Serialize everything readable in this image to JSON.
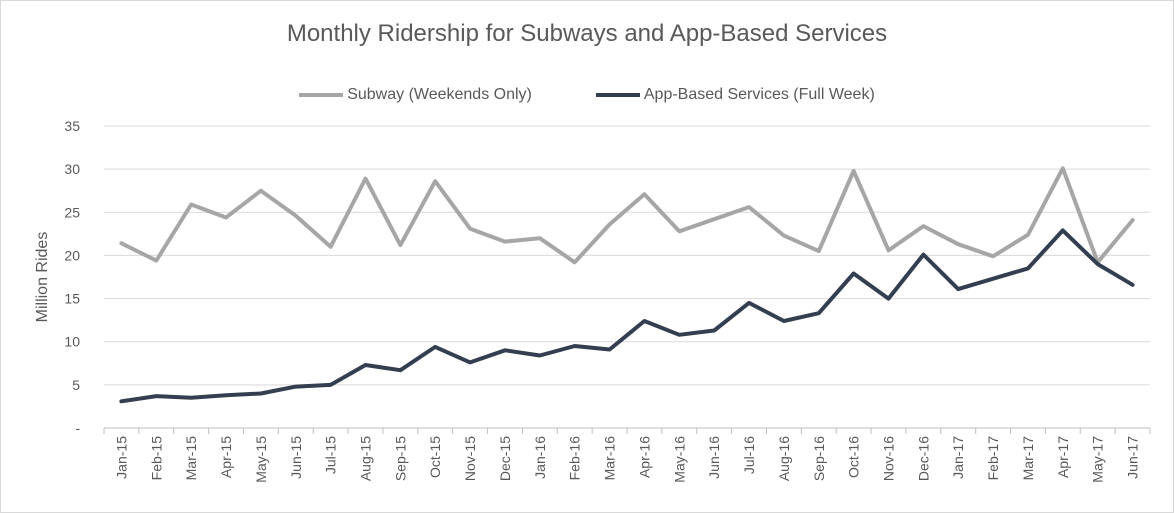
{
  "chart_data": {
    "type": "line",
    "title": "Monthly Ridership for Subways and App-Based Services",
    "ylabel": "Million Rides",
    "xlabel": "",
    "ylim": [
      0,
      35
    ],
    "yticks": [
      "-",
      "5",
      "10",
      "15",
      "20",
      "25",
      "30",
      "35"
    ],
    "grid": true,
    "legend_position": "top",
    "categories": [
      "Jan-15",
      "Feb-15",
      "Mar-15",
      "Apr-15",
      "May-15",
      "Jun-15",
      "Jul-15",
      "Aug-15",
      "Sep-15",
      "Oct-15",
      "Nov-15",
      "Dec-15",
      "Jan-16",
      "Feb-16",
      "Mar-16",
      "Apr-16",
      "May-16",
      "Jun-16",
      "Jul-16",
      "Aug-16",
      "Sep-16",
      "Oct-16",
      "Nov-16",
      "Dec-16",
      "Jan-17",
      "Feb-17",
      "Mar-17",
      "Apr-17",
      "May-17",
      "Jun-17"
    ],
    "series": [
      {
        "name": "Subway (Weekends Only)",
        "color": "#a6a6a6",
        "values": [
          21.4,
          19.4,
          25.9,
          24.4,
          27.5,
          24.6,
          21.0,
          28.9,
          21.2,
          28.6,
          23.1,
          21.6,
          22.0,
          19.2,
          23.6,
          27.1,
          22.8,
          24.2,
          25.6,
          22.3,
          20.5,
          29.8,
          20.6,
          23.4,
          21.3,
          19.9,
          22.4,
          30.1,
          19.2,
          24.1
        ]
      },
      {
        "name": "App-Based Services (Full Week)",
        "color": "#333f50",
        "values": [
          3.1,
          3.7,
          3.5,
          3.8,
          4.0,
          4.8,
          5.0,
          7.3,
          6.7,
          9.4,
          7.6,
          9.0,
          8.4,
          9.5,
          9.1,
          12.4,
          10.8,
          11.3,
          14.5,
          12.4,
          13.3,
          17.9,
          15.0,
          20.1,
          16.1,
          17.3,
          18.5,
          22.9,
          19.0,
          16.6
        ]
      }
    ]
  }
}
